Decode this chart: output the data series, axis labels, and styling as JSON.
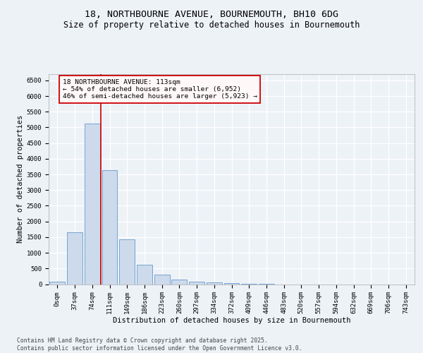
{
  "title_line1": "18, NORTHBOURNE AVENUE, BOURNEMOUTH, BH10 6DG",
  "title_line2": "Size of property relative to detached houses in Bournemouth",
  "xlabel": "Distribution of detached houses by size in Bournemouth",
  "ylabel": "Number of detached properties",
  "bar_color": "#ccdaeb",
  "bar_edge_color": "#6699cc",
  "categories": [
    "0sqm",
    "37sqm",
    "74sqm",
    "111sqm",
    "149sqm",
    "186sqm",
    "223sqm",
    "260sqm",
    "297sqm",
    "334sqm",
    "372sqm",
    "409sqm",
    "446sqm",
    "483sqm",
    "520sqm",
    "557sqm",
    "594sqm",
    "632sqm",
    "669sqm",
    "706sqm",
    "743sqm"
  ],
  "values": [
    70,
    1650,
    5130,
    3630,
    1420,
    620,
    310,
    150,
    90,
    55,
    30,
    10,
    5,
    0,
    0,
    0,
    0,
    0,
    0,
    0,
    0
  ],
  "ylim": [
    0,
    6700
  ],
  "yticks": [
    0,
    500,
    1000,
    1500,
    2000,
    2500,
    3000,
    3500,
    4000,
    4500,
    5000,
    5500,
    6000,
    6500
  ],
  "vline_x": 2.5,
  "vline_color": "#cc0000",
  "annotation_text": "18 NORTHBOURNE AVENUE: 113sqm\n← 54% of detached houses are smaller (6,952)\n46% of semi-detached houses are larger (5,923) →",
  "annotation_box_facecolor": "#fff8f8",
  "annotation_box_edge": "#cc0000",
  "footer_line1": "Contains HM Land Registry data © Crown copyright and database right 2025.",
  "footer_line2": "Contains public sector information licensed under the Open Government Licence v3.0.",
  "background_color": "#edf2f7",
  "grid_color": "#ffffff",
  "title1_fontsize": 9.5,
  "title2_fontsize": 8.5,
  "axis_label_fontsize": 7.5,
  "tick_fontsize": 6.5,
  "annot_fontsize": 6.8,
  "footer_fontsize": 5.8
}
